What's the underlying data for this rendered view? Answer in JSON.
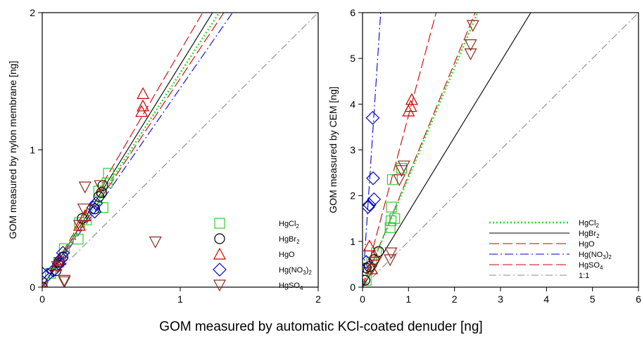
{
  "figure": {
    "shared_xlabel": "GOM measured by automatic KCl-coated denuder [ng]"
  },
  "chart_data": [
    {
      "type": "scatter",
      "xlabel": "",
      "ylabel": "GOM measured by nylon membrane [ng]",
      "xlim": [
        0,
        2
      ],
      "ylim": [
        0,
        2
      ],
      "xticks": [
        "0",
        "1",
        "2"
      ],
      "yticks": [
        "0",
        "1",
        "2"
      ],
      "grid": false,
      "legend": {
        "placement": "bottom-right",
        "entries": [
          {
            "name": "HgCl",
            "sub": "2",
            "tail": ""
          },
          {
            "name": "HgBr",
            "sub": "2",
            "tail": ""
          },
          {
            "name": "HgO",
            "sub": "",
            "tail": ""
          },
          {
            "name": "Hg(NO",
            "sub": "3",
            "tail": ")2"
          },
          {
            "name": "HgSO",
            "sub": "4",
            "tail": ""
          }
        ]
      },
      "series": [
        {
          "name": "HgCl2",
          "marker": "square",
          "color": "#33cc33",
          "points": [
            [
              0.0,
              0.0
            ],
            [
              0.06,
              0.1
            ],
            [
              0.12,
              0.18
            ],
            [
              0.16,
              0.28
            ],
            [
              0.26,
              0.35
            ],
            [
              0.27,
              0.47
            ],
            [
              0.32,
              0.49
            ],
            [
              0.41,
              0.7
            ],
            [
              0.44,
              0.58
            ],
            [
              0.47,
              0.76
            ],
            [
              0.48,
              0.83
            ]
          ]
        },
        {
          "name": "HgBr2",
          "marker": "circle",
          "color": "#000000",
          "points": [
            [
              0.0,
              0.0
            ],
            [
              0.1,
              0.12
            ],
            [
              0.12,
              0.18
            ],
            [
              0.15,
              0.22
            ],
            [
              0.29,
              0.5
            ],
            [
              0.38,
              0.57
            ],
            [
              0.41,
              0.66
            ],
            [
              0.43,
              0.69
            ],
            [
              0.44,
              0.74
            ]
          ]
        },
        {
          "name": "HgO",
          "marker": "triangle-up",
          "color": "#cc0000",
          "points": [
            [
              0.0,
              0.0
            ],
            [
              0.1,
              0.16
            ],
            [
              0.13,
              0.2
            ],
            [
              0.27,
              0.45
            ],
            [
              0.31,
              0.52
            ],
            [
              0.72,
              1.28
            ],
            [
              0.73,
              1.32
            ],
            [
              0.73,
              1.41
            ]
          ]
        },
        {
          "name": "Hg(NO3)2",
          "marker": "diamond",
          "color": "#0000cc",
          "points": [
            [
              0.0,
              0.1
            ],
            [
              0.04,
              0.09
            ],
            [
              0.08,
              0.12
            ],
            [
              0.12,
              0.17
            ],
            [
              0.14,
              0.21
            ],
            [
              0.15,
              0.25
            ],
            [
              0.37,
              0.58
            ],
            [
              0.38,
              0.55
            ],
            [
              0.39,
              0.61
            ]
          ]
        },
        {
          "name": "HgSO4",
          "marker": "triangle-down",
          "color": "#8b2b1f",
          "points": [
            [
              0.0,
              0.0
            ],
            [
              0.11,
              0.15
            ],
            [
              0.13,
              0.18
            ],
            [
              0.16,
              0.05
            ],
            [
              0.16,
              0.04
            ],
            [
              0.27,
              0.45
            ],
            [
              0.3,
              0.57
            ],
            [
              0.31,
              0.73
            ],
            [
              0.42,
              0.74
            ],
            [
              0.82,
              0.33
            ]
          ]
        }
      ],
      "lines": [
        {
          "name": "HgO",
          "slope": 1.72,
          "intercept": 0.0,
          "color": "#cc0000",
          "dash": "14,5"
        },
        {
          "name": "HgBr2",
          "slope": 1.62,
          "intercept": 0.0,
          "color": "#000000",
          "dash": ""
        },
        {
          "name": "HgCl2",
          "slope": 1.56,
          "intercept": 0.0,
          "color": "#33dd33",
          "dash": "2,3"
        },
        {
          "name": "HgSO4",
          "slope": 1.52,
          "intercept": 0.0,
          "color": "#cc0000",
          "dash": "14,5"
        },
        {
          "name": "Hg(NO3)2",
          "slope": 1.45,
          "intercept": 0.0,
          "color": "#0000cc",
          "dash": "12,4,2,4"
        },
        {
          "name": "1:1",
          "slope": 1.0,
          "intercept": 0.0,
          "color": "#888888",
          "dash": "10,4,2,4"
        }
      ]
    },
    {
      "type": "scatter",
      "xlabel": "",
      "ylabel": "GOM measured by CEM [ng]",
      "xlim": [
        0,
        6
      ],
      "ylim": [
        0,
        6
      ],
      "xticks": [
        "0",
        "1",
        "2",
        "3",
        "4",
        "5",
        "6"
      ],
      "yticks": [
        "0",
        "1",
        "2",
        "3",
        "4",
        "5",
        "6"
      ],
      "grid": false,
      "legend": {
        "placement": "bottom-right",
        "entries": [
          {
            "name": "HgCl",
            "sub": "2",
            "tail": ""
          },
          {
            "name": "HgBr",
            "sub": "2",
            "tail": ""
          },
          {
            "name": "HgO",
            "sub": "",
            "tail": ""
          },
          {
            "name": "Hg(NO",
            "sub": "3",
            "tail": ")2"
          },
          {
            "name": "HgSO",
            "sub": "4",
            "tail": ""
          },
          {
            "name": "1:1",
            "sub": "",
            "tail": ""
          }
        ]
      },
      "series": [
        {
          "name": "HgCl2",
          "marker": "square",
          "color": "#33cc33",
          "points": [
            [
              0.08,
              0.15
            ],
            [
              0.2,
              0.55
            ],
            [
              0.3,
              0.75
            ],
            [
              0.6,
              1.3
            ],
            [
              0.62,
              1.45
            ],
            [
              0.63,
              1.75
            ],
            [
              0.65,
              2.35
            ],
            [
              0.7,
              1.5
            ],
            [
              0.85,
              2.6
            ]
          ]
        },
        {
          "name": "HgBr2",
          "marker": "circle",
          "color": "#000000",
          "points": [
            [
              0.05,
              0.15
            ],
            [
              0.08,
              0.42
            ],
            [
              0.15,
              0.45
            ],
            [
              0.25,
              0.6
            ],
            [
              0.35,
              0.78
            ]
          ]
        },
        {
          "name": "HgO",
          "marker": "triangle-up",
          "color": "#cc0000",
          "points": [
            [
              0.15,
              0.9
            ],
            [
              0.2,
              0.4
            ],
            [
              0.25,
              0.7
            ],
            [
              1.0,
              3.85
            ],
            [
              1.05,
              3.95
            ],
            [
              1.07,
              4.1
            ]
          ]
        },
        {
          "name": "Hg(NO3)2",
          "marker": "diamond",
          "color": "#0000cc",
          "points": [
            [
              0.08,
              0.55
            ],
            [
              0.12,
              1.75
            ],
            [
              0.15,
              1.8
            ],
            [
              0.22,
              3.7
            ],
            [
              0.23,
              2.38
            ],
            [
              0.25,
              1.92
            ]
          ]
        },
        {
          "name": "HgSO4",
          "marker": "triangle-down",
          "color": "#8b2b1f",
          "points": [
            [
              0.2,
              0.4
            ],
            [
              0.28,
              0.55
            ],
            [
              0.6,
              0.6
            ],
            [
              0.62,
              0.75
            ],
            [
              0.8,
              2.35
            ],
            [
              0.85,
              2.55
            ],
            [
              0.9,
              2.65
            ],
            [
              2.35,
              5.1
            ],
            [
              2.35,
              5.3
            ],
            [
              2.4,
              5.72
            ]
          ]
        }
      ],
      "lines": [
        {
          "name": "Hg(NO3)2",
          "slope": 15.2,
          "intercept": 0.0,
          "color": "#0000cc",
          "dash": "12,4,2,4"
        },
        {
          "name": "HgO",
          "slope": 3.75,
          "intercept": 0.0,
          "color": "#cc0000",
          "dash": "14,5"
        },
        {
          "name": "HgSO4",
          "slope": 2.45,
          "intercept": 0.0,
          "color": "#cc0000",
          "dash": "14,5"
        },
        {
          "name": "HgCl2",
          "slope": 2.4,
          "intercept": 0.0,
          "color": "#33dd33",
          "dash": "2,3"
        },
        {
          "name": "HgBr2",
          "slope": 1.64,
          "intercept": 0.0,
          "color": "#000000",
          "dash": ""
        },
        {
          "name": "1:1",
          "slope": 1.0,
          "intercept": 0.0,
          "color": "#888888",
          "dash": "10,4,2,4"
        }
      ]
    }
  ]
}
